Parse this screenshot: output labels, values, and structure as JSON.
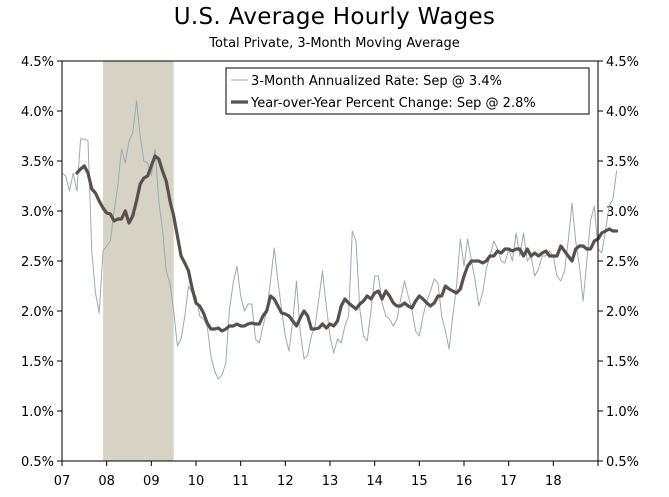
{
  "chart_data": {
    "type": "line",
    "title": "U.S. Average Hourly Wages",
    "subtitle": "Total Private, 3-Month Moving Average",
    "y_ticks": [
      "0.5%",
      "1.0%",
      "1.5%",
      "2.0%",
      "2.5%",
      "3.0%",
      "3.5%",
      "4.0%",
      "4.5%"
    ],
    "x_ticks": [
      "07",
      "08",
      "09",
      "10",
      "11",
      "12",
      "13",
      "14",
      "15",
      "16",
      "17",
      "18"
    ],
    "ylim": [
      0.5,
      4.5
    ],
    "xlim": [
      2007.0,
      2019.0
    ],
    "recession": {
      "start": 2007.92,
      "end": 2009.5
    },
    "legend": {
      "position": "top-right"
    },
    "series": [
      {
        "name": "3-Month Annualized Rate: Sep @ 3.4%",
        "style": "thin",
        "color": "#9aaab6",
        "points": [
          [
            2007.0,
            3.38
          ],
          [
            2007.083,
            3.35
          ],
          [
            2007.167,
            3.2
          ],
          [
            2007.25,
            3.38
          ],
          [
            2007.333,
            3.2
          ],
          [
            2007.417,
            3.72
          ],
          [
            2007.5,
            3.72
          ],
          [
            2007.583,
            3.7
          ],
          [
            2007.667,
            2.6
          ],
          [
            2007.75,
            2.18
          ],
          [
            2007.833,
            1.98
          ],
          [
            2007.917,
            2.6
          ],
          [
            2008.0,
            2.65
          ],
          [
            2008.083,
            2.7
          ],
          [
            2008.167,
            3.0
          ],
          [
            2008.25,
            3.25
          ],
          [
            2008.333,
            3.62
          ],
          [
            2008.417,
            3.48
          ],
          [
            2008.5,
            3.7
          ],
          [
            2008.583,
            3.78
          ],
          [
            2008.667,
            4.1
          ],
          [
            2008.75,
            3.75
          ],
          [
            2008.833,
            3.5
          ],
          [
            2008.917,
            3.48
          ],
          [
            2009.0,
            3.35
          ],
          [
            2009.083,
            3.62
          ],
          [
            2009.167,
            3.1
          ],
          [
            2009.25,
            2.82
          ],
          [
            2009.333,
            2.4
          ],
          [
            2009.417,
            2.28
          ],
          [
            2009.5,
            2.0
          ],
          [
            2009.583,
            1.65
          ],
          [
            2009.667,
            1.72
          ],
          [
            2009.75,
            1.95
          ],
          [
            2009.833,
            2.25
          ],
          [
            2009.917,
            2.18
          ],
          [
            2010.0,
            2.15
          ],
          [
            2010.083,
            1.95
          ],
          [
            2010.167,
            1.92
          ],
          [
            2010.25,
            1.85
          ],
          [
            2010.333,
            1.55
          ],
          [
            2010.417,
            1.4
          ],
          [
            2010.5,
            1.32
          ],
          [
            2010.583,
            1.36
          ],
          [
            2010.667,
            1.48
          ],
          [
            2010.75,
            2.02
          ],
          [
            2010.833,
            2.28
          ],
          [
            2010.917,
            2.45
          ],
          [
            2011.0,
            2.15
          ],
          [
            2011.083,
            2.0
          ],
          [
            2011.167,
            2.07
          ],
          [
            2011.25,
            2.07
          ],
          [
            2011.333,
            1.72
          ],
          [
            2011.417,
            1.68
          ],
          [
            2011.5,
            1.85
          ],
          [
            2011.583,
            2.0
          ],
          [
            2011.667,
            2.3
          ],
          [
            2011.75,
            2.63
          ],
          [
            2011.833,
            2.3
          ],
          [
            2011.917,
            2.02
          ],
          [
            2012.0,
            1.75
          ],
          [
            2012.083,
            1.6
          ],
          [
            2012.167,
            1.9
          ],
          [
            2012.25,
            2.3
          ],
          [
            2012.333,
            1.8
          ],
          [
            2012.417,
            1.52
          ],
          [
            2012.5,
            1.56
          ],
          [
            2012.583,
            1.75
          ],
          [
            2012.667,
            1.85
          ],
          [
            2012.75,
            2.12
          ],
          [
            2012.833,
            2.4
          ],
          [
            2012.917,
            2.05
          ],
          [
            2013.0,
            1.75
          ],
          [
            2013.083,
            1.58
          ],
          [
            2013.167,
            1.72
          ],
          [
            2013.25,
            1.68
          ],
          [
            2013.333,
            1.85
          ],
          [
            2013.417,
            1.95
          ],
          [
            2013.5,
            2.8
          ],
          [
            2013.583,
            2.7
          ],
          [
            2013.667,
            2.02
          ],
          [
            2013.75,
            1.75
          ],
          [
            2013.833,
            1.7
          ],
          [
            2013.917,
            2.0
          ],
          [
            2014.0,
            2.35
          ],
          [
            2014.083,
            2.35
          ],
          [
            2014.167,
            2.08
          ],
          [
            2014.25,
            1.95
          ],
          [
            2014.333,
            1.92
          ],
          [
            2014.417,
            1.85
          ],
          [
            2014.5,
            1.92
          ],
          [
            2014.583,
            2.12
          ],
          [
            2014.667,
            2.3
          ],
          [
            2014.75,
            2.15
          ],
          [
            2014.833,
            2.02
          ],
          [
            2014.917,
            1.8
          ],
          [
            2015.0,
            1.75
          ],
          [
            2015.083,
            1.95
          ],
          [
            2015.167,
            2.1
          ],
          [
            2015.25,
            2.2
          ],
          [
            2015.333,
            2.32
          ],
          [
            2015.417,
            2.28
          ],
          [
            2015.5,
            1.95
          ],
          [
            2015.583,
            1.8
          ],
          [
            2015.667,
            1.62
          ],
          [
            2015.75,
            1.95
          ],
          [
            2015.833,
            2.25
          ],
          [
            2015.917,
            2.72
          ],
          [
            2016.0,
            2.45
          ],
          [
            2016.083,
            2.72
          ],
          [
            2016.167,
            2.5
          ],
          [
            2016.25,
            2.3
          ],
          [
            2016.333,
            2.05
          ],
          [
            2016.417,
            2.18
          ],
          [
            2016.5,
            2.42
          ],
          [
            2016.583,
            2.55
          ],
          [
            2016.667,
            2.7
          ],
          [
            2016.75,
            2.62
          ],
          [
            2016.833,
            2.5
          ],
          [
            2016.917,
            2.48
          ],
          [
            2017.0,
            2.62
          ],
          [
            2017.083,
            2.5
          ],
          [
            2017.167,
            2.78
          ],
          [
            2017.25,
            2.55
          ],
          [
            2017.333,
            2.78
          ],
          [
            2017.417,
            2.5
          ],
          [
            2017.5,
            2.55
          ],
          [
            2017.583,
            2.35
          ],
          [
            2017.667,
            2.42
          ],
          [
            2017.75,
            2.55
          ],
          [
            2017.833,
            2.55
          ],
          [
            2017.917,
            2.6
          ],
          [
            2018.0,
            2.55
          ],
          [
            2018.083,
            2.35
          ],
          [
            2018.167,
            2.3
          ],
          [
            2018.25,
            2.4
          ],
          [
            2018.333,
            2.7
          ],
          [
            2018.417,
            3.08
          ],
          [
            2018.5,
            2.7
          ],
          [
            2018.583,
            2.45
          ],
          [
            2018.667,
            2.1
          ],
          [
            2018.75,
            2.5
          ],
          [
            2018.833,
            2.9
          ],
          [
            2018.917,
            3.05
          ],
          [
            2019.0,
            2.62
          ],
          [
            2019.083,
            2.58
          ],
          [
            2019.167,
            2.8
          ],
          [
            2019.25,
            3.05
          ],
          [
            2019.333,
            3.12
          ],
          [
            2019.417,
            3.4
          ]
        ]
      },
      {
        "name": "Year-over-Year Percent Change: Sep @ 2.8%",
        "style": "thick",
        "color": "#58504a",
        "points": [
          [
            2007.333,
            3.38
          ],
          [
            2007.417,
            3.42
          ],
          [
            2007.5,
            3.45
          ],
          [
            2007.583,
            3.38
          ],
          [
            2007.667,
            3.22
          ],
          [
            2007.75,
            3.18
          ],
          [
            2007.833,
            3.1
          ],
          [
            2007.917,
            3.03
          ],
          [
            2008.0,
            2.98
          ],
          [
            2008.083,
            2.97
          ],
          [
            2008.167,
            2.9
          ],
          [
            2008.25,
            2.92
          ],
          [
            2008.333,
            2.92
          ],
          [
            2008.417,
            3.0
          ],
          [
            2008.5,
            2.88
          ],
          [
            2008.583,
            2.95
          ],
          [
            2008.667,
            3.1
          ],
          [
            2008.75,
            3.27
          ],
          [
            2008.833,
            3.33
          ],
          [
            2008.917,
            3.35
          ],
          [
            2009.0,
            3.45
          ],
          [
            2009.083,
            3.55
          ],
          [
            2009.167,
            3.52
          ],
          [
            2009.25,
            3.4
          ],
          [
            2009.333,
            3.3
          ],
          [
            2009.417,
            3.1
          ],
          [
            2009.5,
            2.95
          ],
          [
            2009.583,
            2.75
          ],
          [
            2009.667,
            2.55
          ],
          [
            2009.75,
            2.48
          ],
          [
            2009.833,
            2.4
          ],
          [
            2009.917,
            2.22
          ],
          [
            2010.0,
            2.08
          ],
          [
            2010.083,
            2.05
          ],
          [
            2010.167,
            1.98
          ],
          [
            2010.25,
            1.88
          ],
          [
            2010.333,
            1.82
          ],
          [
            2010.417,
            1.82
          ],
          [
            2010.5,
            1.83
          ],
          [
            2010.583,
            1.8
          ],
          [
            2010.667,
            1.82
          ],
          [
            2010.75,
            1.85
          ],
          [
            2010.833,
            1.85
          ],
          [
            2010.917,
            1.87
          ],
          [
            2011.0,
            1.85
          ],
          [
            2011.083,
            1.85
          ],
          [
            2011.167,
            1.87
          ],
          [
            2011.25,
            1.88
          ],
          [
            2011.333,
            1.87
          ],
          [
            2011.417,
            1.87
          ],
          [
            2011.5,
            1.95
          ],
          [
            2011.583,
            2.0
          ],
          [
            2011.667,
            2.15
          ],
          [
            2011.75,
            2.12
          ],
          [
            2011.833,
            2.05
          ],
          [
            2011.917,
            1.98
          ],
          [
            2012.0,
            1.97
          ],
          [
            2012.083,
            1.95
          ],
          [
            2012.167,
            1.9
          ],
          [
            2012.25,
            1.85
          ],
          [
            2012.333,
            1.93
          ],
          [
            2012.417,
            2.0
          ],
          [
            2012.5,
            1.95
          ],
          [
            2012.583,
            1.82
          ],
          [
            2012.667,
            1.82
          ],
          [
            2012.75,
            1.83
          ],
          [
            2012.833,
            1.87
          ],
          [
            2012.917,
            1.83
          ],
          [
            2013.0,
            1.87
          ],
          [
            2013.083,
            1.85
          ],
          [
            2013.167,
            1.9
          ],
          [
            2013.25,
            2.05
          ],
          [
            2013.333,
            2.12
          ],
          [
            2013.417,
            2.08
          ],
          [
            2013.5,
            2.05
          ],
          [
            2013.583,
            2.02
          ],
          [
            2013.667,
            2.07
          ],
          [
            2013.75,
            2.1
          ],
          [
            2013.833,
            2.15
          ],
          [
            2013.917,
            2.12
          ],
          [
            2014.0,
            2.18
          ],
          [
            2014.083,
            2.2
          ],
          [
            2014.167,
            2.12
          ],
          [
            2014.25,
            2.2
          ],
          [
            2014.333,
            2.15
          ],
          [
            2014.417,
            2.08
          ],
          [
            2014.5,
            2.05
          ],
          [
            2014.583,
            2.05
          ],
          [
            2014.667,
            2.08
          ],
          [
            2014.75,
            2.05
          ],
          [
            2014.833,
            2.03
          ],
          [
            2014.917,
            2.1
          ],
          [
            2015.0,
            2.15
          ],
          [
            2015.083,
            2.12
          ],
          [
            2015.167,
            2.08
          ],
          [
            2015.25,
            2.05
          ],
          [
            2015.333,
            2.08
          ],
          [
            2015.417,
            2.15
          ],
          [
            2015.5,
            2.15
          ],
          [
            2015.583,
            2.25
          ],
          [
            2015.667,
            2.22
          ],
          [
            2015.75,
            2.2
          ],
          [
            2015.833,
            2.18
          ],
          [
            2015.917,
            2.22
          ],
          [
            2016.0,
            2.35
          ],
          [
            2016.083,
            2.45
          ],
          [
            2016.167,
            2.5
          ],
          [
            2016.25,
            2.5
          ],
          [
            2016.333,
            2.5
          ],
          [
            2016.417,
            2.48
          ],
          [
            2016.5,
            2.5
          ],
          [
            2016.583,
            2.55
          ],
          [
            2016.667,
            2.55
          ],
          [
            2016.75,
            2.6
          ],
          [
            2016.833,
            2.58
          ],
          [
            2016.917,
            2.62
          ],
          [
            2017.0,
            2.62
          ],
          [
            2017.083,
            2.6
          ],
          [
            2017.167,
            2.62
          ],
          [
            2017.25,
            2.62
          ],
          [
            2017.333,
            2.55
          ],
          [
            2017.417,
            2.62
          ],
          [
            2017.5,
            2.55
          ],
          [
            2017.583,
            2.58
          ],
          [
            2017.667,
            2.55
          ],
          [
            2017.75,
            2.58
          ],
          [
            2017.833,
            2.6
          ],
          [
            2017.917,
            2.55
          ],
          [
            2018.0,
            2.55
          ],
          [
            2018.083,
            2.55
          ],
          [
            2018.167,
            2.65
          ],
          [
            2018.25,
            2.6
          ],
          [
            2018.333,
            2.55
          ],
          [
            2018.417,
            2.5
          ],
          [
            2018.5,
            2.62
          ],
          [
            2018.583,
            2.65
          ],
          [
            2018.667,
            2.65
          ],
          [
            2018.75,
            2.62
          ],
          [
            2018.833,
            2.62
          ],
          [
            2018.917,
            2.7
          ],
          [
            2019.0,
            2.72
          ],
          [
            2019.083,
            2.78
          ],
          [
            2019.167,
            2.8
          ],
          [
            2019.25,
            2.82
          ],
          [
            2019.333,
            2.8
          ],
          [
            2019.417,
            2.8
          ]
        ]
      }
    ]
  }
}
